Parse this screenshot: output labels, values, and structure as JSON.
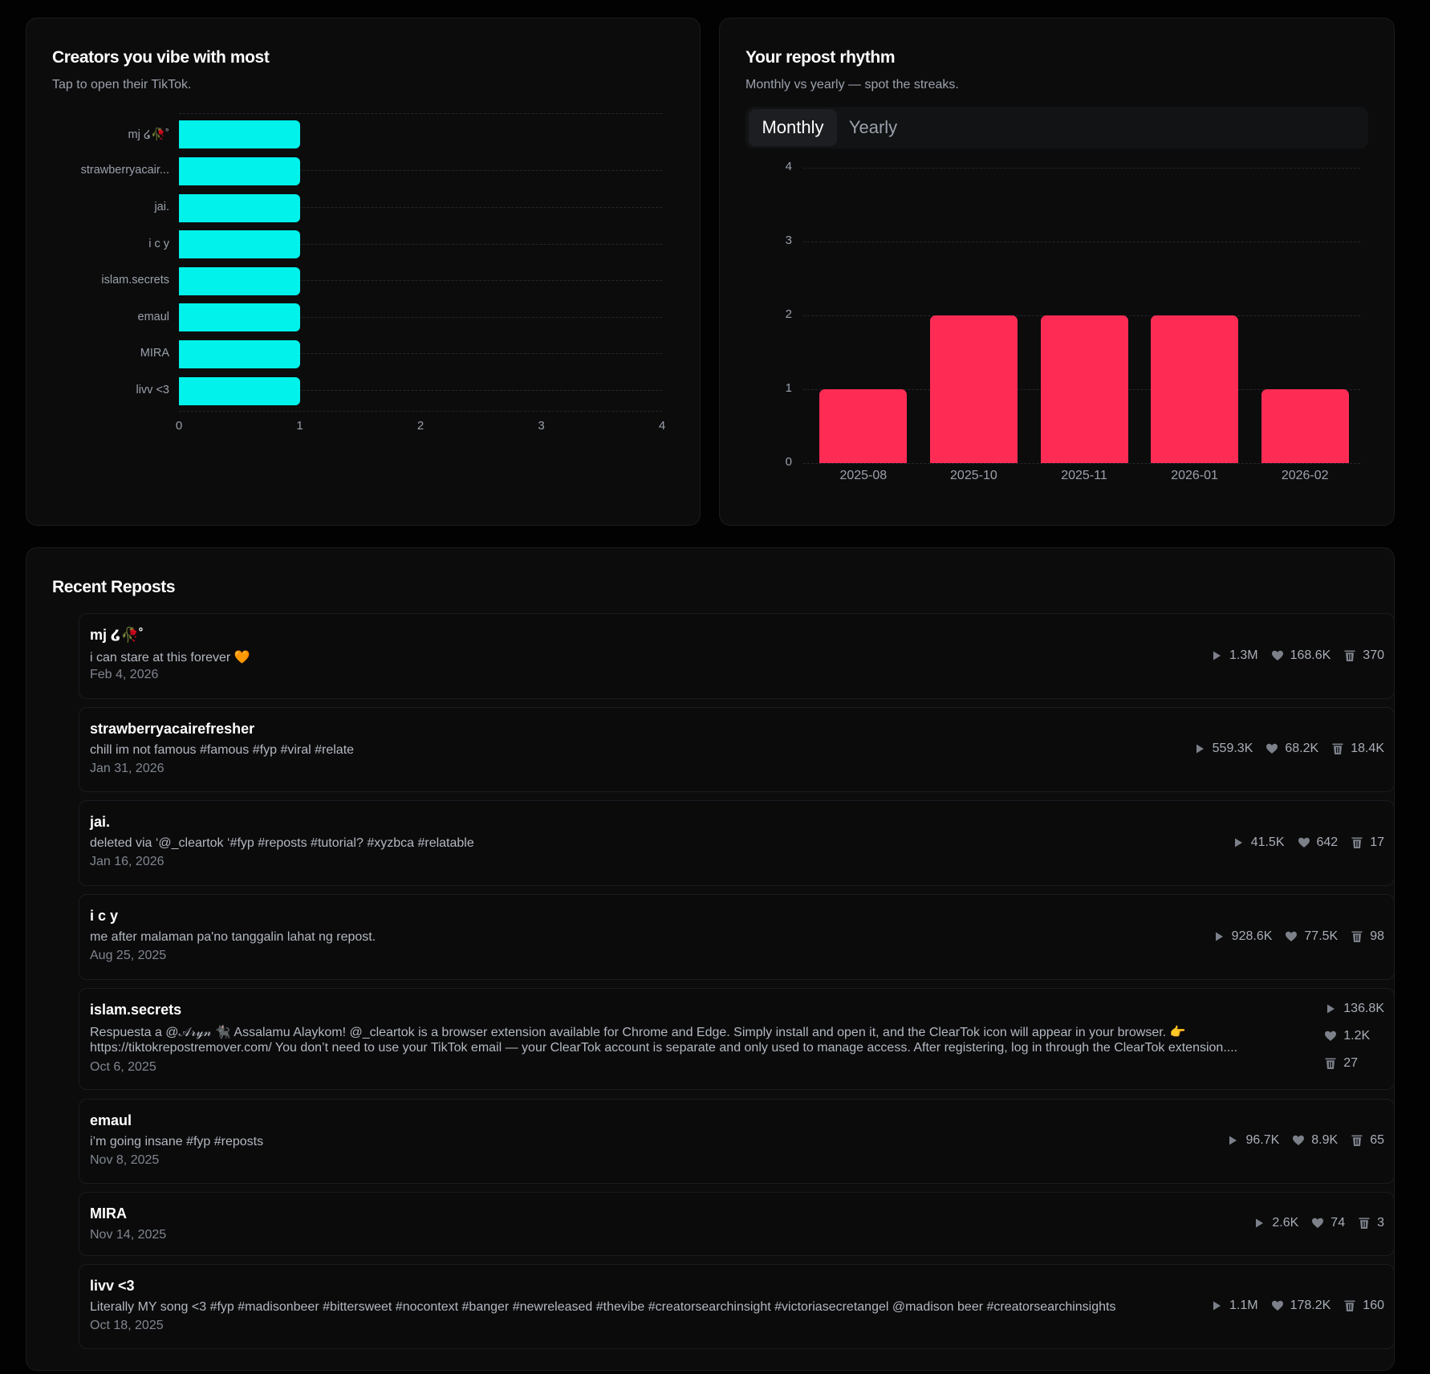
{
  "creators_panel": {
    "title": "Creators you vibe with most",
    "subtitle": "Tap to open their TikTok."
  },
  "rhythm_panel": {
    "title": "Your repost rhythm",
    "subtitle": "Monthly vs yearly — spot the streaks.",
    "tabs": [
      {
        "label": "Monthly",
        "active": true
      },
      {
        "label": "Yearly",
        "active": false
      }
    ]
  },
  "chart_data": [
    {
      "type": "bar",
      "orientation": "horizontal",
      "title": "Creators you vibe with most",
      "categories": [
        "mj ໒🥀˚",
        "strawberryacair...",
        "jai.",
        "i c y",
        "islam.secrets",
        "emaul",
        "MIRA",
        "livv <3"
      ],
      "values": [
        1,
        1,
        1,
        1,
        1,
        1,
        1,
        1
      ],
      "xlim": [
        0,
        4
      ],
      "xticks": [
        "0",
        "1",
        "2",
        "3",
        "4"
      ],
      "grid": true,
      "color": "#00f2ea"
    },
    {
      "type": "bar",
      "orientation": "vertical",
      "title": "Your repost rhythm",
      "categories": [
        "2025-08",
        "2025-10",
        "2025-11",
        "2026-01",
        "2026-02"
      ],
      "values": [
        1,
        2,
        2,
        2,
        1
      ],
      "ylim": [
        0,
        4
      ],
      "yticks": [
        "0",
        "1",
        "2",
        "3",
        "4"
      ],
      "grid": true,
      "color": "#fe2c55"
    }
  ],
  "recent": {
    "title": "Recent Reposts",
    "items": [
      {
        "name": "mj ໒🥀˚",
        "desc": "i can stare at this forever 🧡",
        "date": "Feb 4, 2026",
        "views": "1.3M",
        "likes": "168.6K",
        "removed": "370"
      },
      {
        "name": "strawberryacairefresher",
        "desc": "chill im not famous #famous #fyp #viral #relate",
        "date": "Jan 31, 2026",
        "views": "559.3K",
        "likes": "68.2K",
        "removed": "18.4K"
      },
      {
        "name": "jai.",
        "desc": "deleted via ‘@_cleartok ‘#fyp #reposts #tutorial? #xyzbca #relatable",
        "date": "Jan 16, 2026",
        "views": "41.5K",
        "likes": "642",
        "removed": "17"
      },
      {
        "name": "i c y",
        "desc": "me after malaman pa'no tanggalin lahat ng repost.",
        "date": "Aug 25, 2025",
        "views": "928.6K",
        "likes": "77.5K",
        "removed": "98"
      },
      {
        "name": "islam.secrets",
        "desc": "Respuesta a @𝒜𝓇𝓎𝓃 🐈‍⬛ Assalamu Alaykom! @_cleartok is a browser extension available for Chrome and Edge. Simply install and open it, and the ClearTok icon will appear in your browser. 👉",
        "desc2": "https://tiktokrepostremover.com/ You don’t need to use your TikTok email — your ClearTok account is separate and only used to manage access. After registering, log in through the ClearTok extension....",
        "date": "Oct 6, 2025",
        "views": "136.8K",
        "likes": "1.2K",
        "removed": "27"
      },
      {
        "name": "emaul",
        "desc": "i’m going insane #fyp #reposts",
        "date": "Nov 8, 2025",
        "views": "96.7K",
        "likes": "8.9K",
        "removed": "65"
      },
      {
        "name": "MIRA",
        "desc": "",
        "date": "Nov 14, 2025",
        "views": "2.6K",
        "likes": "74",
        "removed": "3"
      },
      {
        "name": "livv <3",
        "desc": "Literally MY song <3 #fyp #madisonbeer #bittersweet #nocontext #banger #newreleased #thevibe #creatorsearchinsight #victoriasecretangel @madison beer #creatorsearchinsights",
        "date": "Oct 18, 2025",
        "views": "1.1M",
        "likes": "178.2K",
        "removed": "160"
      }
    ]
  },
  "icons": {
    "views": "play-icon",
    "likes": "heart-icon",
    "removed": "trash-icon"
  },
  "colors": {
    "accent_cyan": "#00f2ea",
    "accent_red": "#fe2c55",
    "panel_bg": "#0c0c0d",
    "page_bg": "#020202"
  }
}
